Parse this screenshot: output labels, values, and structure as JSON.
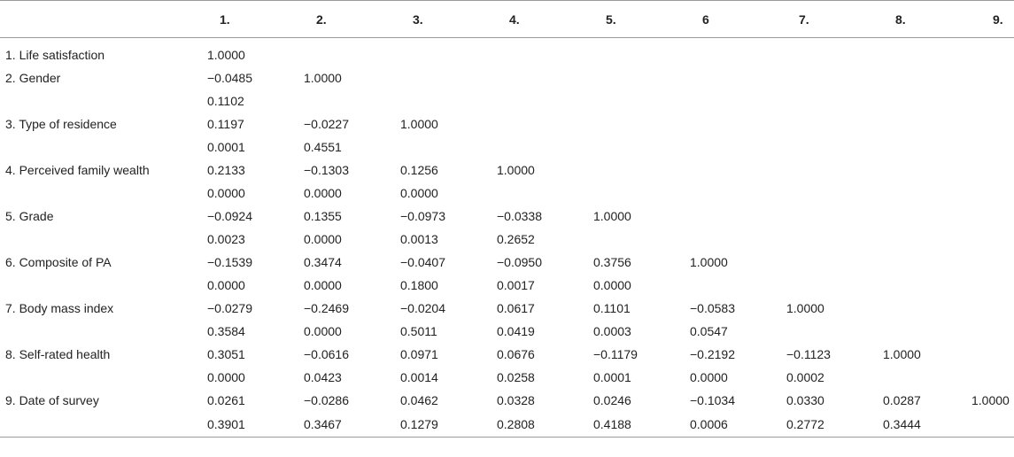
{
  "table": {
    "headers": [
      "",
      "1.",
      "2.",
      "3.",
      "4.",
      "5.",
      "6",
      "7.",
      "8.",
      "9."
    ],
    "rows": [
      {
        "label": "1. Life satisfaction",
        "coef": [
          "1.0000",
          "",
          "",
          "",
          "",
          "",
          "",
          "",
          ""
        ],
        "p": null
      },
      {
        "label": "2. Gender",
        "coef": [
          "−0.0485",
          "1.0000",
          "",
          "",
          "",
          "",
          "",
          "",
          ""
        ],
        "p": [
          "0.1102",
          "",
          "",
          "",
          "",
          "",
          "",
          "",
          ""
        ]
      },
      {
        "label": "3. Type of residence",
        "coef": [
          "0.1197",
          "−0.0227",
          "1.0000",
          "",
          "",
          "",
          "",
          "",
          ""
        ],
        "p": [
          "0.0001",
          "0.4551",
          "",
          "",
          "",
          "",
          "",
          "",
          ""
        ]
      },
      {
        "label": "4. Perceived family wealth",
        "coef": [
          "0.2133",
          "−0.1303",
          "0.1256",
          "1.0000",
          "",
          "",
          "",
          "",
          ""
        ],
        "p": [
          "0.0000",
          "0.0000",
          "0.0000",
          "",
          "",
          "",
          "",
          "",
          ""
        ]
      },
      {
        "label": "5. Grade",
        "coef": [
          "−0.0924",
          "0.1355",
          "−0.0973",
          "−0.0338",
          "1.0000",
          "",
          "",
          "",
          ""
        ],
        "p": [
          "0.0023",
          "0.0000",
          "0.0013",
          "0.2652",
          "",
          "",
          "",
          "",
          ""
        ]
      },
      {
        "label": "6. Composite of PA",
        "coef": [
          "−0.1539",
          "0.3474",
          "−0.0407",
          "−0.0950",
          "0.3756",
          "1.0000",
          "",
          "",
          ""
        ],
        "p": [
          "0.0000",
          "0.0000",
          "0.1800",
          "0.0017",
          "0.0000",
          "",
          "",
          "",
          ""
        ]
      },
      {
        "label": "7. Body mass index",
        "coef": [
          "−0.0279",
          "−0.2469",
          "−0.0204",
          "0.0617",
          "0.1101",
          "−0.0583",
          "1.0000",
          "",
          ""
        ],
        "p": [
          "0.3584",
          "0.0000",
          "0.5011",
          "0.0419",
          "0.0003",
          "0.0547",
          "",
          "",
          ""
        ]
      },
      {
        "label": "8. Self-rated health",
        "coef": [
          "0.3051",
          "−0.0616",
          "0.0971",
          "0.0676",
          "−0.1179",
          "−0.2192",
          "−0.1123",
          "1.0000",
          ""
        ],
        "p": [
          "0.0000",
          "0.0423",
          "0.0014",
          "0.0258",
          "0.0001",
          "0.0000",
          "0.0002",
          "",
          ""
        ]
      },
      {
        "label": "9. Date of survey",
        "coef": [
          "0.0261",
          "−0.0286",
          "0.0462",
          "0.0328",
          "0.0246",
          "−0.1034",
          "0.0330",
          "0.0287",
          "1.0000"
        ],
        "p": [
          "0.3901",
          "0.3467",
          "0.1279",
          "0.2808",
          "0.4188",
          "0.0006",
          "0.2772",
          "0.3444",
          ""
        ]
      }
    ]
  }
}
